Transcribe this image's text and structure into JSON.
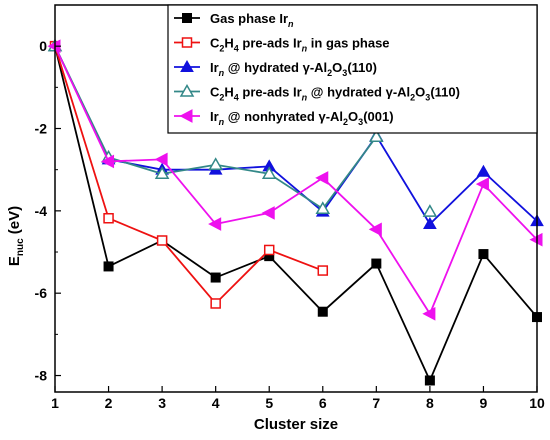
{
  "chart_data": {
    "type": "line",
    "xlabel": "Cluster size",
    "ylabel": {
      "main": "E",
      "sub": "nuc",
      "unit": " (eV)"
    },
    "xlim": [
      1,
      10
    ],
    "ylim": [
      -8.4,
      1.0
    ],
    "xticks": [
      1,
      2,
      3,
      4,
      5,
      6,
      7,
      8,
      9,
      10
    ],
    "yticks": [
      0,
      -2,
      -4,
      -6,
      -8
    ],
    "grid": false,
    "legend_position": "top-right",
    "series": [
      {
        "name": "Gas phase Ir_n",
        "legend": [
          {
            "t": "Gas phase Ir"
          },
          {
            "t": "n",
            "style": "sub-italic"
          }
        ],
        "color": "#000000",
        "marker": "square",
        "filled": true,
        "x": [
          1,
          2,
          3,
          4,
          5,
          6,
          7,
          8,
          9,
          10
        ],
        "y": [
          0.0,
          -5.35,
          -4.72,
          -5.62,
          -5.1,
          -6.45,
          -5.28,
          -8.12,
          -5.05,
          -6.58
        ]
      },
      {
        "name": "C2H4 pre-ads Ir_n in gas phase",
        "legend": [
          {
            "t": "C"
          },
          {
            "t": "2",
            "style": "sub"
          },
          {
            "t": "H"
          },
          {
            "t": "4",
            "style": "sub"
          },
          {
            "t": " pre-ads Ir"
          },
          {
            "t": "n",
            "style": "sub-italic"
          },
          {
            "t": " in gas phase"
          }
        ],
        "color": "#ee1111",
        "marker": "square",
        "filled": false,
        "x": [
          1,
          2,
          3,
          4,
          5,
          6
        ],
        "y": [
          0.0,
          -4.18,
          -4.72,
          -6.25,
          -4.95,
          -5.45
        ]
      },
      {
        "name": "Ir_n @ hydrated γ-Al2O3(110)",
        "legend": [
          {
            "t": "Ir"
          },
          {
            "t": "n",
            "style": "sub-italic"
          },
          {
            "t": " @ hydrated γ-Al"
          },
          {
            "t": "2",
            "style": "sub"
          },
          {
            "t": "O"
          },
          {
            "t": "3",
            "style": "sub"
          },
          {
            "t": "(110)"
          }
        ],
        "color": "#1111dd",
        "marker": "triangle-up",
        "filled": true,
        "x": [
          1,
          2,
          3,
          4,
          5,
          6,
          7,
          8,
          9,
          10
        ],
        "y": [
          0.0,
          -2.75,
          -3.0,
          -3.0,
          -2.92,
          -4.02,
          -2.18,
          -4.32,
          -3.05,
          -4.25
        ]
      },
      {
        "name": "C2H4 pre-ads Ir_n @ hydrated γ-Al2O3(110)",
        "legend": [
          {
            "t": "C"
          },
          {
            "t": "2",
            "style": "sub"
          },
          {
            "t": "H"
          },
          {
            "t": "4",
            "style": "sub"
          },
          {
            "t": " pre-ads  Ir"
          },
          {
            "t": "n",
            "style": "sub-italic"
          },
          {
            "t": " @ hydrated γ-Al"
          },
          {
            "t": "2",
            "style": "sub"
          },
          {
            "t": "O"
          },
          {
            "t": "3",
            "style": "sub"
          },
          {
            "t": "(110)"
          }
        ],
        "color": "#338888",
        "marker": "triangle-up",
        "filled": false,
        "x": [
          1,
          2,
          3,
          4,
          5,
          6,
          7
        ],
        "y": [
          0.0,
          -2.7,
          -3.1,
          -2.88,
          -3.1,
          -3.95,
          -2.2
        ],
        "extra_points": {
          "x": [
            8
          ],
          "y": [
            -4.02
          ]
        }
      },
      {
        "name": "Ir_n @ nonhyrated γ-Al2O3(001)",
        "legend": [
          {
            "t": "Ir"
          },
          {
            "t": "n",
            "style": "sub-italic"
          },
          {
            "t": " @ nonhyrated γ-Al"
          },
          {
            "t": "2",
            "style": "sub"
          },
          {
            "t": "O"
          },
          {
            "t": "3",
            "style": "sub"
          },
          {
            "t": "(001)"
          }
        ],
        "color": "#ee11ee",
        "marker": "triangle-left",
        "filled": true,
        "x": [
          1,
          2,
          3,
          4,
          5,
          6,
          7,
          8,
          9,
          10
        ],
        "y": [
          0.0,
          -2.8,
          -2.75,
          -4.32,
          -4.05,
          -3.2,
          -4.45,
          -6.5,
          -3.35,
          -4.7
        ]
      }
    ]
  }
}
